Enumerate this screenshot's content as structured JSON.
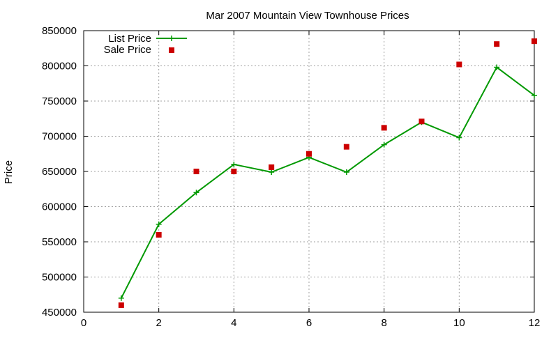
{
  "chart_data": {
    "type": "line",
    "title": "Mar 2007 Mountain View Townhouse Prices",
    "xlabel": "",
    "ylabel": "Price",
    "xlim": [
      0,
      12
    ],
    "ylim": [
      450000,
      850000
    ],
    "x_ticks": [
      0,
      2,
      4,
      6,
      8,
      10,
      12
    ],
    "y_ticks": [
      450000,
      500000,
      550000,
      600000,
      650000,
      700000,
      750000,
      800000,
      850000
    ],
    "grid": true,
    "legend_position": "top-left",
    "series": [
      {
        "name": "List Price",
        "style": "line+points",
        "marker": "plus",
        "color": "#009900",
        "x": [
          1,
          2,
          3,
          4,
          5,
          6,
          7,
          8,
          9,
          10,
          11,
          12
        ],
        "values": [
          470000,
          575000,
          620000,
          660000,
          649000,
          670000,
          649000,
          688000,
          720000,
          698000,
          798000,
          758000
        ]
      },
      {
        "name": "Sale Price",
        "style": "points",
        "marker": "square",
        "color": "#cc0000",
        "x": [
          1,
          2,
          3,
          4,
          5,
          6,
          7,
          8,
          9,
          10,
          11,
          12
        ],
        "values": [
          460000,
          560000,
          650000,
          650000,
          656000,
          675000,
          685000,
          712000,
          721000,
          802000,
          831000,
          835000
        ]
      }
    ]
  }
}
